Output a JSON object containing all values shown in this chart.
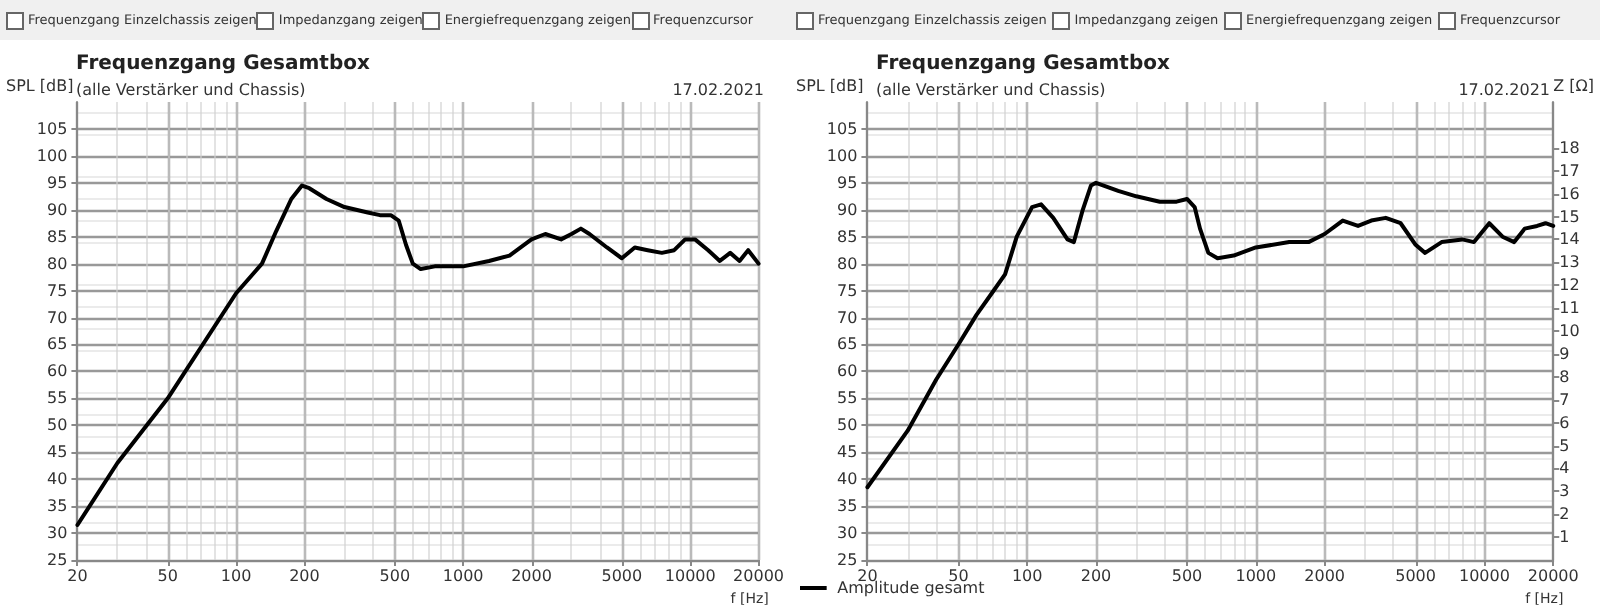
{
  "chart_data": [
    {
      "type": "line",
      "title": "Frequenzgang Gesamtbox",
      "subtitle": "(alle Verstärker und Chassis)",
      "xlabel": "f [Hz]",
      "ylabel": "SPL [dB]",
      "annotations": [
        "17.02.2021",
        "Frequenzgang Einzelchassis zeigen",
        "Impedanzgang zeigen",
        "Energiefrequenzgang zeigen",
        "Frequenzcursor"
      ],
      "log": "x",
      "xlim": [
        20,
        20000
      ],
      "xticks": [
        20,
        50,
        100,
        200,
        500,
        1000,
        2000,
        5000,
        10000,
        20000
      ],
      "ylim": [
        25,
        110
      ],
      "yticks": [
        25,
        30,
        35,
        40,
        45,
        50,
        55,
        60,
        65,
        70,
        75,
        80,
        85,
        90,
        95,
        100,
        105
      ],
      "grid": true,
      "legend": false,
      "marker": "none",
      "line_style": "solid",
      "series": [
        {
          "color": "#000000",
          "x": [
            20,
            30,
            50,
            100,
            130,
            150,
            175,
            195,
            210,
            250,
            300,
            380,
            430,
            480,
            520,
            560,
            600,
            650,
            750,
            1000,
            1300,
            1600,
            2000,
            2300,
            2700,
            3000,
            3300,
            3600,
            4300,
            5000,
            5700,
            6500,
            7500,
            8500,
            9500,
            10500,
            12000,
            13500,
            15000,
            16500,
            18000,
            20000
          ],
          "values": [
            31.5,
            43,
            55,
            74.5,
            80,
            86,
            92,
            94.5,
            94,
            92,
            90.5,
            89.5,
            89,
            89,
            88,
            83.5,
            80,
            79,
            79.5,
            79.5,
            80.5,
            81.5,
            84.5,
            85.5,
            84.5,
            85.5,
            86.5,
            85.5,
            83,
            81,
            83,
            82.5,
            82,
            82.5,
            84.5,
            84.5,
            82.5,
            80.5,
            82,
            80.5,
            82.5,
            80
          ]
        }
      ]
    },
    {
      "type": "line",
      "title": "Frequenzgang Gesamtbox",
      "subtitle": "(alle Verstärker und Chassis)",
      "xlabel": "f [Hz]",
      "ylabel": "SPL [dB]",
      "y2label": "Z [Ω]",
      "annotations": [
        "17.02.2021",
        "Frequenzgang Einzelchassis zeigen",
        "Impedanzgang zeigen",
        "Energiefrequenzgang zeigen",
        "Frequenzcursor"
      ],
      "log": "x",
      "xlim": [
        20,
        20000
      ],
      "xticks": [
        20,
        50,
        100,
        200,
        500,
        1000,
        2000,
        5000,
        10000,
        20000
      ],
      "ylim": [
        25,
        110
      ],
      "yticks": [
        25,
        30,
        35,
        40,
        45,
        50,
        55,
        60,
        65,
        70,
        75,
        80,
        85,
        90,
        95,
        100,
        105
      ],
      "y2lim": [
        0,
        20
      ],
      "y2ticks": [
        1,
        2,
        3,
        4,
        5,
        6,
        7,
        8,
        9,
        10,
        11,
        12,
        13,
        14,
        15,
        16,
        17,
        18
      ],
      "grid": true,
      "legend": "bottom left",
      "marker": "none",
      "line_style": "solid",
      "series": [
        {
          "name": "Amplitude gesamt",
          "color": "#000000",
          "x": [
            20,
            30,
            40,
            50,
            60,
            70,
            80,
            90,
            105,
            115,
            130,
            150,
            160,
            175,
            190,
            200,
            250,
            300,
            380,
            450,
            500,
            540,
            570,
            620,
            680,
            800,
            1000,
            1400,
            1700,
            2000,
            2400,
            2800,
            3200,
            3700,
            4300,
            5000,
            5500,
            6500,
            8000,
            9000,
            10500,
            12000,
            13500,
            15000,
            17000,
            18500,
            20000
          ],
          "values": [
            38.5,
            49,
            58.5,
            65,
            70.5,
            74.5,
            78,
            85,
            90.5,
            91,
            88.5,
            84.5,
            84,
            90,
            94.5,
            95,
            93.5,
            92.5,
            91.5,
            91.5,
            92,
            90.5,
            86.5,
            82,
            81,
            81.5,
            83,
            84,
            84,
            85.5,
            88,
            87,
            88,
            88.5,
            87.5,
            83.5,
            82,
            84,
            84.5,
            84,
            87.5,
            85,
            84,
            86.5,
            87,
            87.5,
            87
          ]
        }
      ]
    }
  ]
}
